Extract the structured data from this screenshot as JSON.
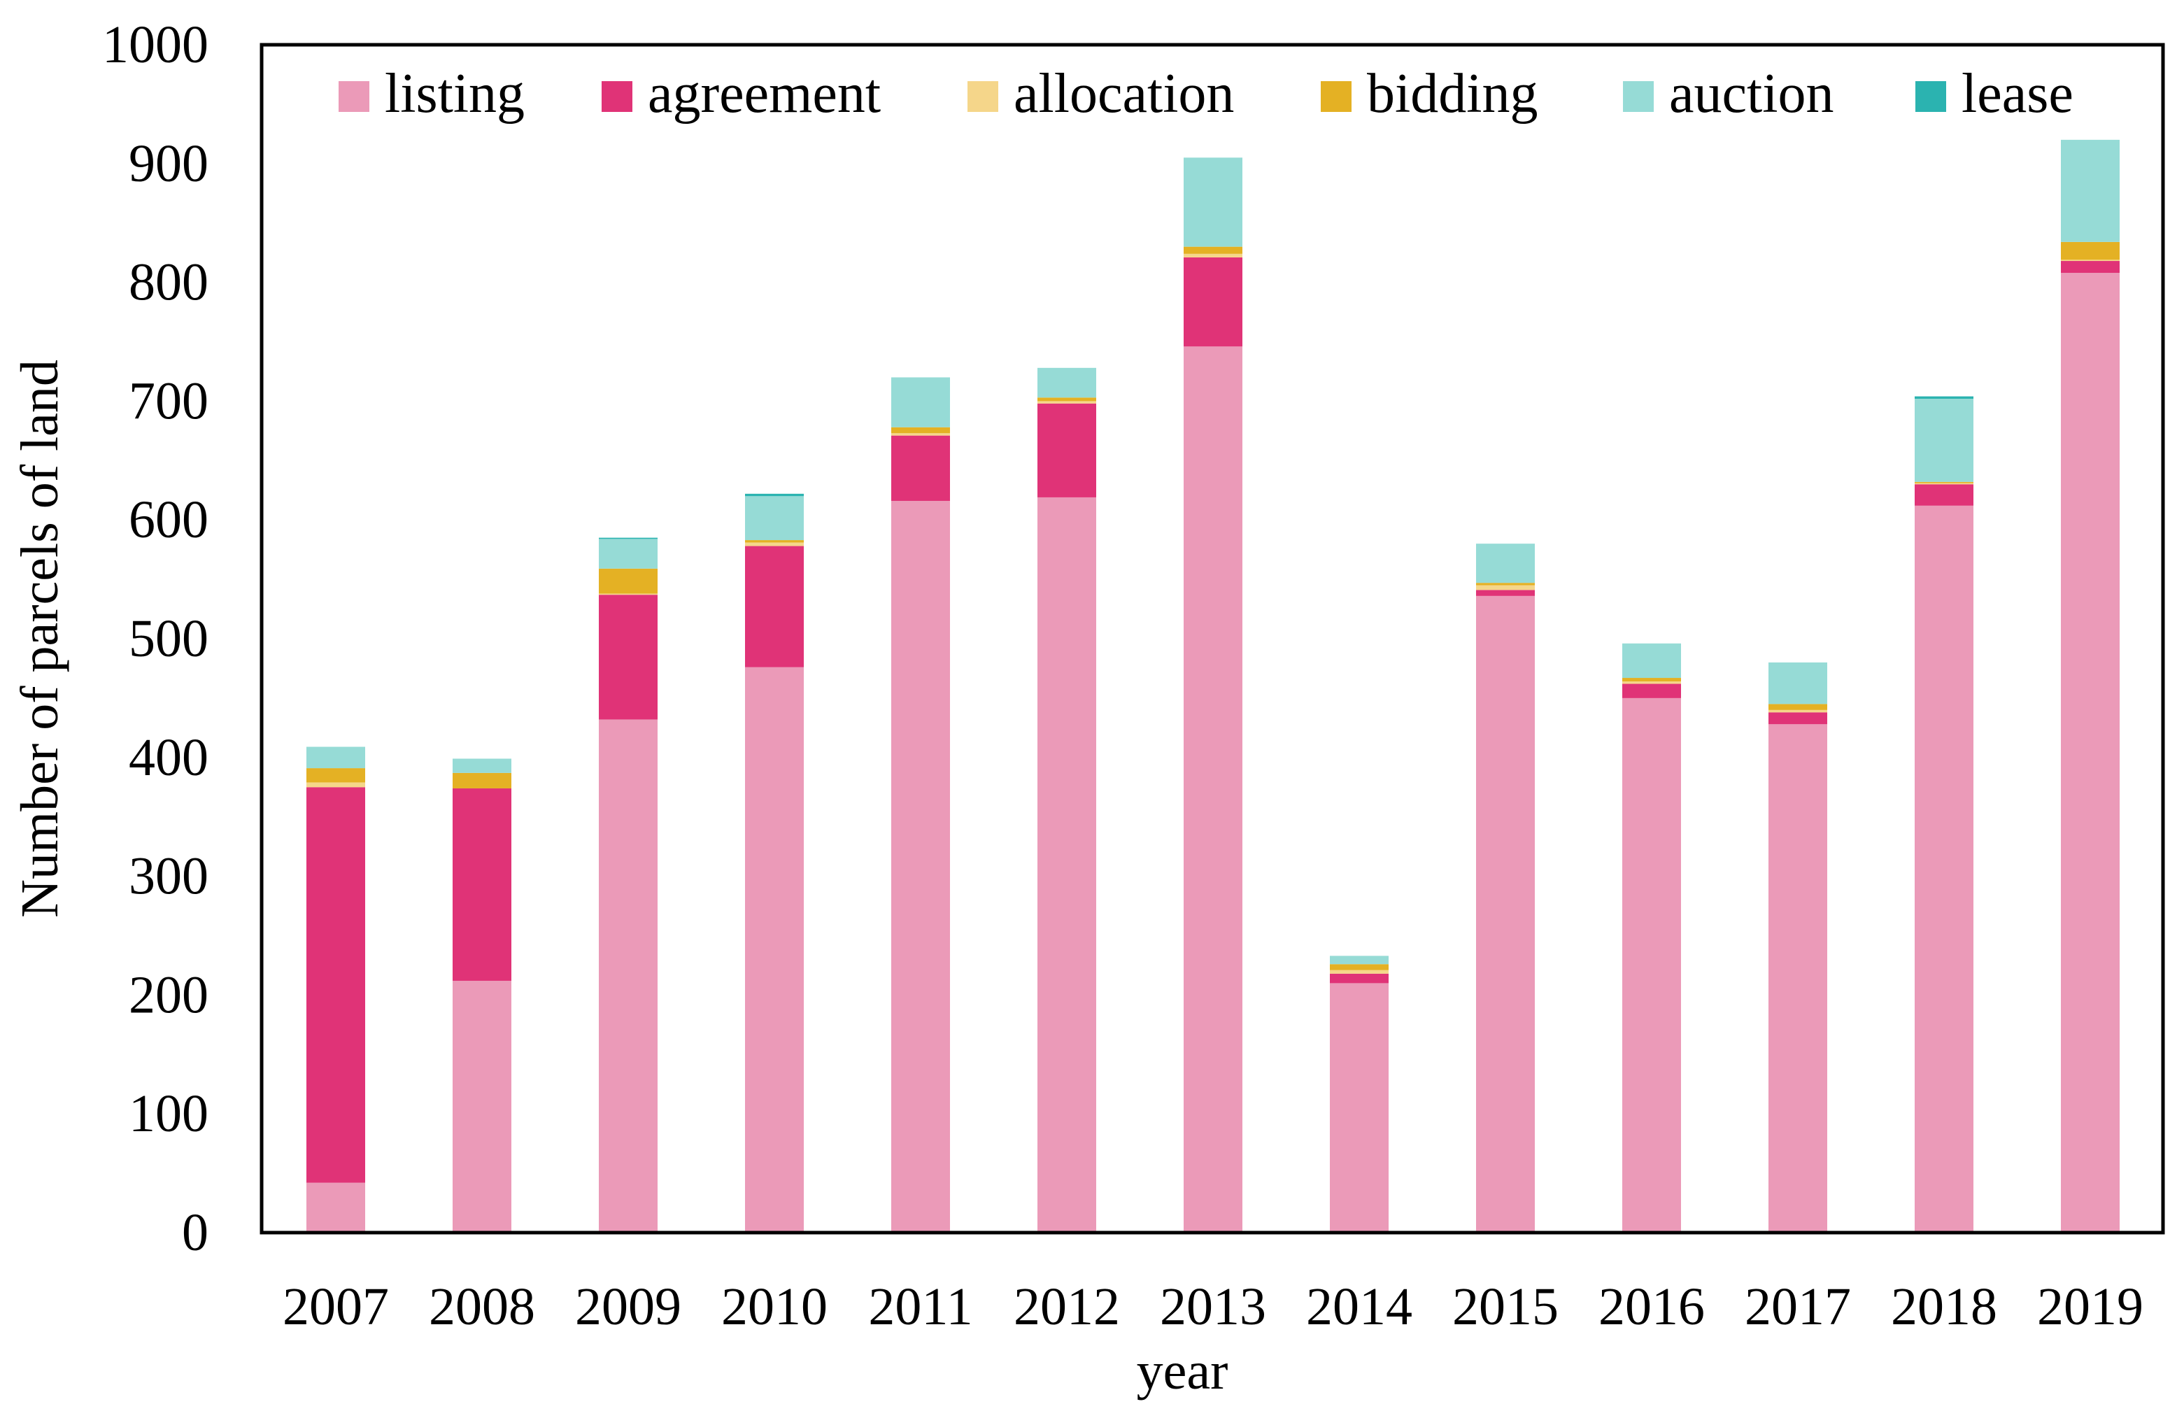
{
  "chart_data": {
    "type": "bar",
    "stacked": true,
    "title": "",
    "xlabel": "year",
    "ylabel": "Number of parcels of land",
    "ylim": [
      0,
      1000
    ],
    "yticks": [
      0,
      100,
      200,
      300,
      400,
      500,
      600,
      700,
      800,
      900,
      1000
    ],
    "grid": false,
    "legend_position": "top",
    "categories": [
      "2007",
      "2008",
      "2009",
      "2010",
      "2011",
      "2012",
      "2013",
      "2014",
      "2015",
      "2016",
      "2017",
      "2018",
      "2019"
    ],
    "series": [
      {
        "name": "listing",
        "color": "#eb9ab8",
        "values": [
          42,
          212,
          432,
          476,
          616,
          619,
          746,
          210,
          536,
          450,
          428,
          612,
          808
        ]
      },
      {
        "name": "agreement",
        "color": "#e03377",
        "values": [
          333,
          162,
          105,
          102,
          55,
          79,
          75,
          8,
          5,
          12,
          10,
          18,
          10
        ]
      },
      {
        "name": "allocation",
        "color": "#f5d68a",
        "values": [
          4,
          0,
          1,
          3,
          2,
          2,
          3,
          3,
          4,
          2,
          2,
          1,
          1
        ]
      },
      {
        "name": "bidding",
        "color": "#e4b124",
        "values": [
          12,
          13,
          21,
          2,
          5,
          3,
          6,
          5,
          2,
          3,
          5,
          1,
          15
        ]
      },
      {
        "name": "auction",
        "color": "#96dbd6",
        "values": [
          18,
          12,
          25,
          37,
          42,
          25,
          75,
          7,
          33,
          29,
          35,
          70,
          86
        ]
      },
      {
        "name": "lease",
        "color": "#2bb3b0",
        "values": [
          0,
          0,
          1,
          2,
          0,
          0,
          0,
          0,
          0,
          0,
          0,
          2,
          0
        ]
      }
    ]
  }
}
